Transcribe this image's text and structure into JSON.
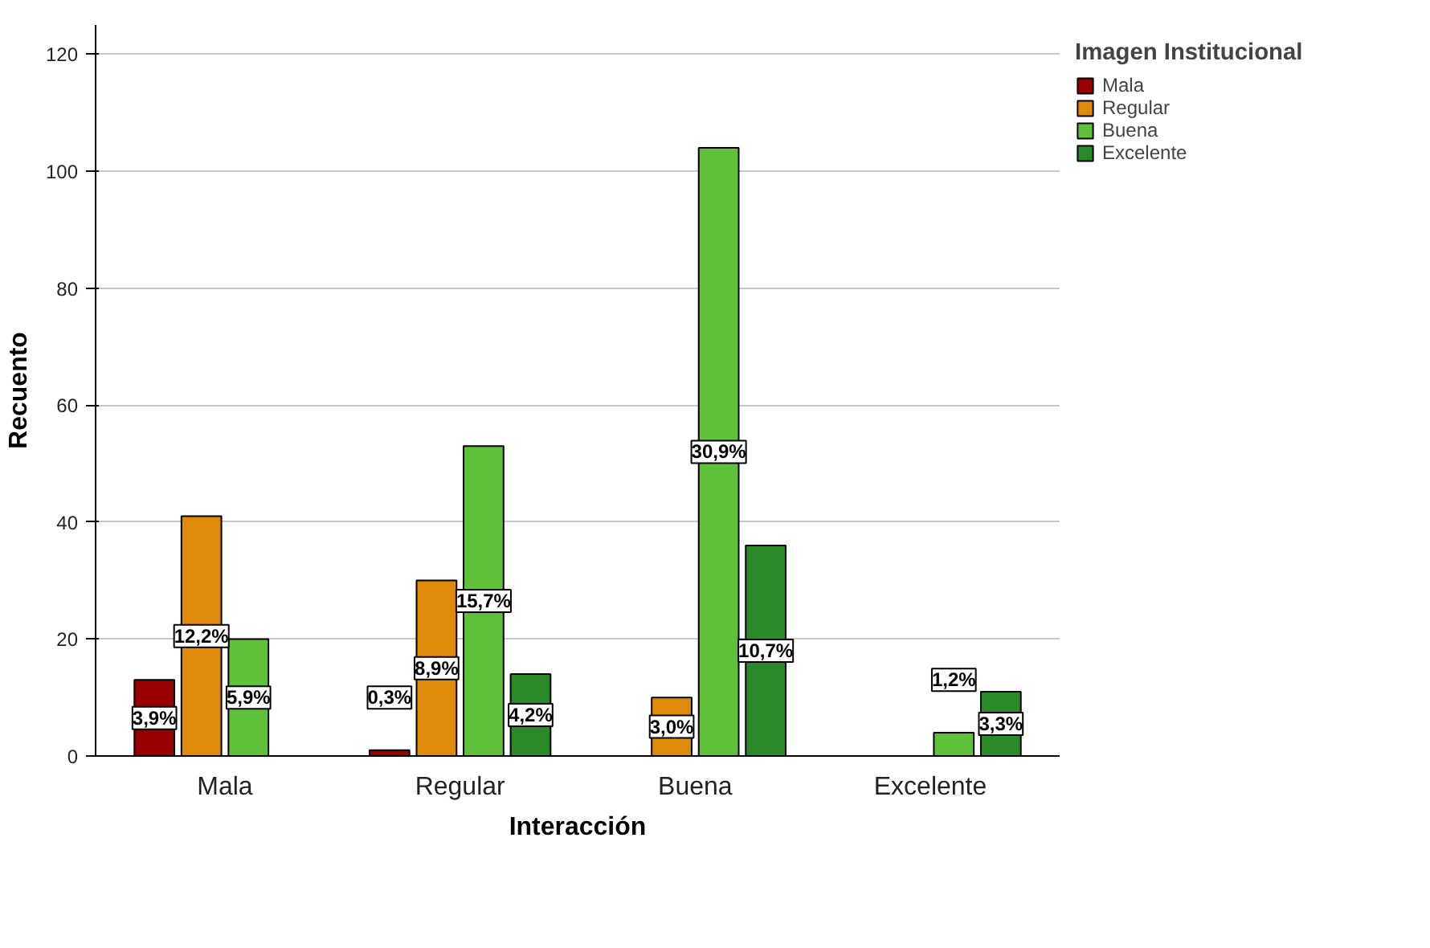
{
  "chart_data": {
    "type": "bar",
    "xlabel": "Interacción",
    "ylabel": "Recuento",
    "legend_title": "Imagen Institucional",
    "categories": [
      "Mala",
      "Regular",
      "Buena",
      "Excelente"
    ],
    "series": [
      {
        "name": "Mala",
        "color": "#990000",
        "values": [
          13,
          1,
          null,
          null
        ]
      },
      {
        "name": "Regular",
        "color": "#e08a0b",
        "values": [
          41,
          30,
          10,
          null
        ]
      },
      {
        "name": "Buena",
        "color": "#5fc13a",
        "values": [
          20,
          53,
          104,
          4
        ]
      },
      {
        "name": "Excelente",
        "color": "#2a8a2a",
        "values": [
          null,
          14,
          36,
          11
        ]
      }
    ],
    "annotations": [
      "3,9%",
      "12,2%",
      "5,9%",
      "0,3%",
      "8,9%",
      "15,7%",
      "4,2%",
      "3,0%",
      "30,9%",
      "10,7%",
      "1,2%",
      "3,3%"
    ],
    "ylim": [
      0,
      125
    ],
    "yticks": [
      0,
      20,
      40,
      60,
      80,
      100,
      120
    ],
    "grid": "y",
    "legend": "top right"
  }
}
